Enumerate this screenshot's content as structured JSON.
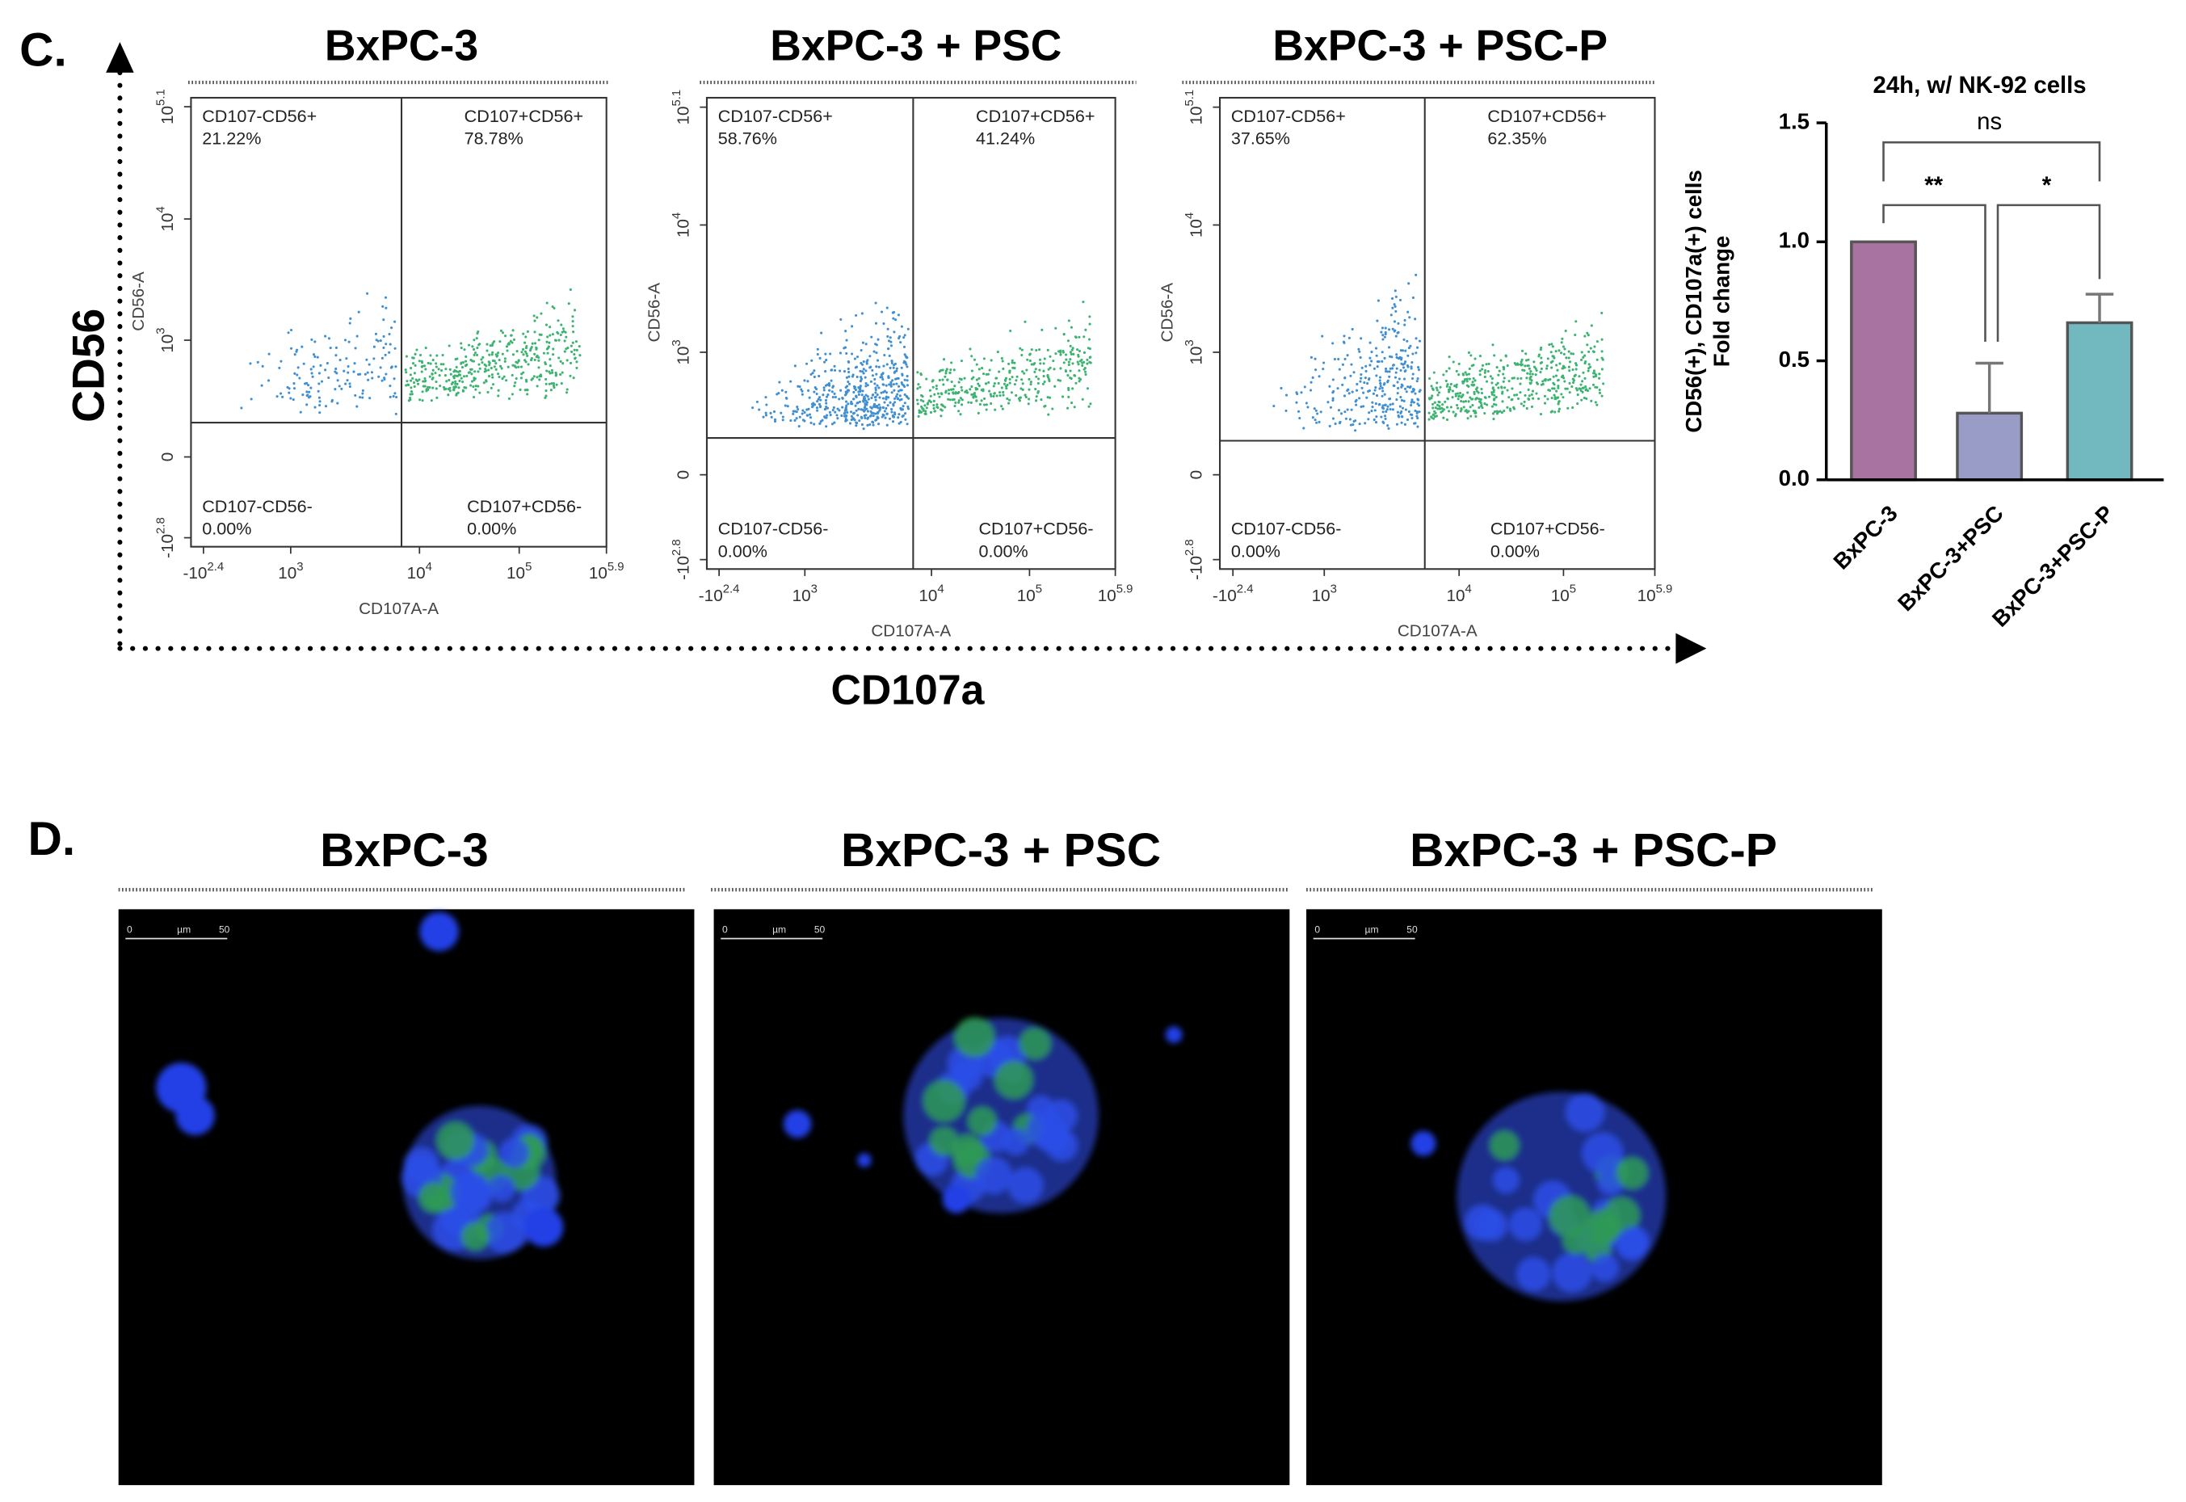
{
  "figure": {
    "panel_c": {
      "label": "C.",
      "y_axis_label": "CD56",
      "x_axis_label": "CD107a",
      "flow_plots": [
        {
          "title": "BxPC-3",
          "x_label": "CD107A-A",
          "y_label": "CD56-A",
          "xticks": [
            {
              "base": "-10",
              "exponent": "2.4"
            },
            {
              "base": "10",
              "exponent": "3"
            },
            {
              "base": "10",
              "exponent": "4"
            },
            {
              "base": "10",
              "exponent": "5"
            },
            {
              "base": "10",
              "exponent": "5.9"
            }
          ],
          "yticks": [
            {
              "base": "10",
              "exponent": "5.1"
            },
            {
              "base": "10",
              "exponent": "4"
            },
            {
              "base": "10",
              "exponent": "3"
            },
            {
              "base": "0"
            },
            {
              "base": "-10",
              "exponent": "2.8"
            }
          ],
          "quadrants": [
            {
              "name": "CD107-CD56+",
              "percent": "21.22%"
            },
            {
              "name": "CD107+CD56+",
              "percent": "78.78%"
            },
            {
              "name": "CD107-CD56-",
              "percent": "0.00%"
            },
            {
              "name": "CD107+CD56-",
              "percent": "0.00%"
            }
          ]
        },
        {
          "title": "BxPC-3 + PSC",
          "x_label": "CD107A-A",
          "y_label": "CD56-A",
          "xticks": [
            {
              "base": "-10",
              "exponent": "2.4"
            },
            {
              "base": "10",
              "exponent": "3"
            },
            {
              "base": "10",
              "exponent": "4"
            },
            {
              "base": "10",
              "exponent": "5"
            },
            {
              "base": "10",
              "exponent": "5.9"
            }
          ],
          "yticks": [
            {
              "base": "10",
              "exponent": "5.1"
            },
            {
              "base": "10",
              "exponent": "4"
            },
            {
              "base": "10",
              "exponent": "3"
            },
            {
              "base": "0"
            },
            {
              "base": "-10",
              "exponent": "2.8"
            }
          ],
          "quadrants": [
            {
              "name": "CD107-CD56+",
              "percent": "58.76%"
            },
            {
              "name": "CD107+CD56+",
              "percent": "41.24%"
            },
            {
              "name": "CD107-CD56-",
              "percent": "0.00%"
            },
            {
              "name": "CD107+CD56-",
              "percent": "0.00%"
            }
          ]
        },
        {
          "title": "BxPC-3 + PSC-P",
          "x_label": "CD107A-A",
          "y_label": "CD56-A",
          "xticks": [
            {
              "base": "-10",
              "exponent": "2.4"
            },
            {
              "base": "10",
              "exponent": "3"
            },
            {
              "base": "10",
              "exponent": "4"
            },
            {
              "base": "10",
              "exponent": "5"
            },
            {
              "base": "10",
              "exponent": "5.9"
            }
          ],
          "yticks": [
            {
              "base": "10",
              "exponent": "5.1"
            },
            {
              "base": "10",
              "exponent": "4"
            },
            {
              "base": "10",
              "exponent": "3"
            },
            {
              "base": "0"
            },
            {
              "base": "-10",
              "exponent": "2.8"
            }
          ],
          "quadrants": [
            {
              "name": "CD107-CD56+",
              "percent": "37.65%"
            },
            {
              "name": "CD107+CD56+",
              "percent": "62.35%"
            },
            {
              "name": "CD107-CD56-",
              "percent": "0.00%"
            },
            {
              "name": "CD107+CD56-",
              "percent": "0.00%"
            }
          ]
        }
      ]
    },
    "panel_d": {
      "label": "D.",
      "images": [
        {
          "title": "BxPC-3",
          "scale_bar": [
            "0",
            "µm",
            "50"
          ]
        },
        {
          "title": "BxPC-3 + PSC",
          "scale_bar": [
            "0",
            "µm",
            "50"
          ]
        },
        {
          "title": "BxPC-3 + PSC-P",
          "scale_bar": [
            "0",
            "µm",
            "50"
          ]
        }
      ]
    }
  },
  "chart_data": {
    "type": "bar",
    "title": "24h, w/ NK-92 cells",
    "y_label": [
      "CD56(+), CD107a(+) cells",
      "Fold change"
    ],
    "categories": [
      "BxPC-3",
      "BxPC-3+PSC",
      "BxPC-3+PSC-P"
    ],
    "values": [
      1.0,
      0.28,
      0.66
    ],
    "errors": [
      null,
      0.21,
      0.12
    ],
    "colors": [
      "#a873a0",
      "#9a9cc8",
      "#72b8bf"
    ],
    "ylim": [
      0,
      1.5
    ],
    "yticks": [
      {
        "value": 0,
        "label": "0.0"
      },
      {
        "value": 0.5,
        "label": "0.5"
      },
      {
        "value": 1,
        "label": "1.0"
      },
      {
        "value": 1.5,
        "label": "1.5"
      }
    ],
    "annotations": [
      "ns",
      "**",
      "*"
    ]
  }
}
